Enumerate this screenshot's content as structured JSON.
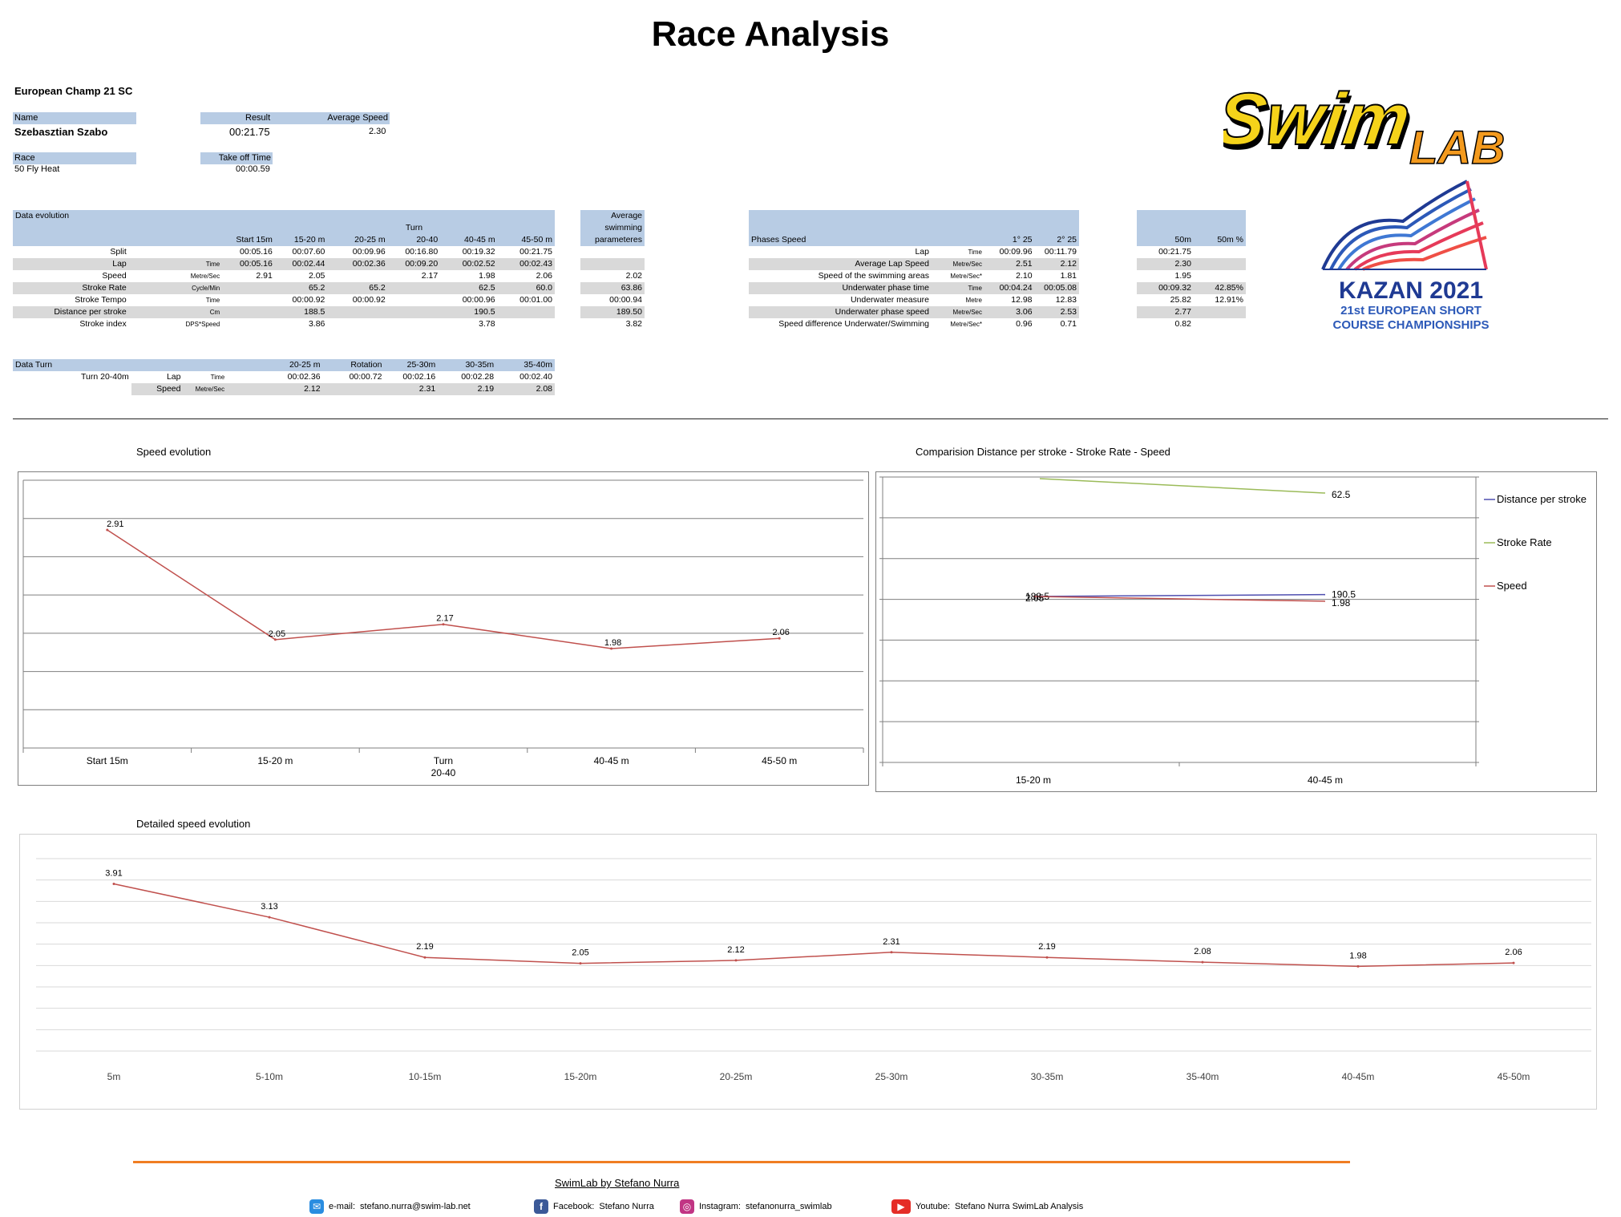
{
  "title": "Race Analysis",
  "event": "European Champ 21 SC",
  "athlete": {
    "name_label": "Name",
    "name": "Szebasztian Szabo",
    "result_label": "Result",
    "result": "00:21.75",
    "avg_speed_label": "Average Speed",
    "avg_speed": "2.30",
    "race_label": "Race",
    "race": "50 Fly Heat",
    "takeoff_label": "Take off Time",
    "takeoff": "00:00.59"
  },
  "data_evolution": {
    "title": "Data  evolution",
    "turn_top": "Turn",
    "columns": [
      "Start 15m",
      "15-20 m",
      "20-25 m",
      "20-40",
      "40-45 m",
      "45-50 m"
    ],
    "rows": [
      {
        "label": "Split",
        "unit": "",
        "values": [
          "00:05.16",
          "00:07.60",
          "00:09.96",
          "00:16.80",
          "00:19.32",
          "00:21.75"
        ]
      },
      {
        "label": "Lap",
        "unit": "Time",
        "values": [
          "00:05.16",
          "00:02.44",
          "00:02.36",
          "00:09.20",
          "00:02.52",
          "00:02.43"
        ]
      },
      {
        "label": "Speed",
        "unit": "Metre/Sec",
        "values": [
          "2.91",
          "2.05",
          "",
          "2.17",
          "1.98",
          "2.06"
        ]
      },
      {
        "label": "Stroke Rate",
        "unit": "Cycle/Min",
        "values": [
          "",
          "65.2",
          "65.2",
          "",
          "62.5",
          "60.0"
        ]
      },
      {
        "label": "Stroke Tempo",
        "unit": "Time",
        "values": [
          "",
          "00:00.92",
          "00:00.92",
          "",
          "00:00.96",
          "00:01.00"
        ]
      },
      {
        "label": "Distance per stroke",
        "unit": "Cm",
        "values": [
          "",
          "188.5",
          "",
          "",
          "190.5",
          ""
        ]
      },
      {
        "label": "Stroke index",
        "unit": "DPS*Speed",
        "values": [
          "",
          "3.86",
          "",
          "",
          "3.78",
          ""
        ]
      }
    ]
  },
  "avg_params": {
    "header": [
      "Average",
      "swimming",
      "parameteres"
    ],
    "values": [
      "",
      "",
      "2.02",
      "63.86",
      "00:00.94",
      "189.50",
      "3.82"
    ]
  },
  "phases": {
    "header_label": "Phases Speed",
    "col1": "1° 25",
    "col2": "2° 25",
    "rows": [
      {
        "label": "Lap",
        "unit": "Time",
        "v1": "00:09.96",
        "v2": "00:11.79"
      },
      {
        "label": "Average Lap Speed",
        "unit": "Metre/Sec",
        "v1": "2.51",
        "v2": "2.12"
      },
      {
        "label": "Speed of the swimming areas",
        "unit": "Metre/Sec*",
        "v1": "2.10",
        "v2": "1.81"
      },
      {
        "label": "Underwater phase time",
        "unit": "Time",
        "v1": "00:04.24",
        "v2": "00:05.08"
      },
      {
        "label": "Underwater measure",
        "unit": "Metre",
        "v1": "12.98",
        "v2": "12.83"
      },
      {
        "label": "Underwater phase speed",
        "unit": "Metre/Sec",
        "v1": "3.06",
        "v2": "2.53"
      },
      {
        "label": "Speed difference  Underwater/Swimming",
        "unit": "Metre/Sec*",
        "v1": "0.96",
        "v2": "0.71"
      }
    ]
  },
  "total50": {
    "col1": "50m",
    "col2": "50m %",
    "rows": [
      {
        "v1": "00:21.75",
        "v2": ""
      },
      {
        "v1": "2.30",
        "v2": ""
      },
      {
        "v1": "1.95",
        "v2": ""
      },
      {
        "v1": "00:09.32",
        "v2": "42.85%"
      },
      {
        "v1": "25.82",
        "v2": "12.91%"
      },
      {
        "v1": "2.77",
        "v2": ""
      },
      {
        "v1": "0.82",
        "v2": ""
      }
    ]
  },
  "data_turn": {
    "title": "Data Turn",
    "turn_label": "Turn  20-40m",
    "columns": [
      "20-25 m",
      "Rotation",
      "25-30m",
      "30-35m",
      "35-40m"
    ],
    "rows": [
      {
        "label": "Lap",
        "unit": "Time",
        "values": [
          "00:02.36",
          "00:00.72",
          "00:02.16",
          "00:02.28",
          "00:02.40"
        ]
      },
      {
        "label": "Speed",
        "unit": "Metre/Sec",
        "values": [
          "2.12",
          "",
          "2.31",
          "2.19",
          "2.08"
        ]
      }
    ]
  },
  "logos": {
    "swimlab_word1": "Swim",
    "swimlab_word2": "LAB",
    "kazan_main": "KAZAN 2021",
    "kazan_line1": "21st EUROPEAN SHORT",
    "kazan_line2": "COURSE CHAMPIONSHIPS"
  },
  "colors": {
    "header_blue": "#b8cce4",
    "row_gray": "#d9d9d9",
    "speed_red": "#c0504d",
    "dps_blue": "#4f4fb0",
    "rate_green": "#9bbb59",
    "footer_orange": "#f07d22"
  },
  "chart_data": [
    {
      "type": "line",
      "title": "Speed evolution",
      "categories": [
        "Start 15m",
        "15-20 m",
        "Turn\n20-40",
        "40-45 m",
        "45-50 m"
      ],
      "series": [
        {
          "values": [
            2.91,
            2.05,
            2.17,
            1.98,
            2.06
          ]
        }
      ],
      "ylim": [
        1.2,
        3.3
      ],
      "grid": true
    },
    {
      "type": "line",
      "title": "Comparision  Distance per stroke - Stroke Rate - Speed",
      "categories": [
        "15-20 m",
        "40-45 m"
      ],
      "series": [
        {
          "name": "Distance per stroke",
          "values": [
            188.5,
            190.5
          ]
        },
        {
          "name": "Stroke Rate",
          "values": [
            65.2,
            62.5
          ]
        },
        {
          "name": "Speed",
          "values": [
            2.05,
            1.98
          ]
        }
      ],
      "legend": "right",
      "grid": true
    },
    {
      "type": "line",
      "title": "Detailed speed evolution",
      "categories": [
        "5m",
        "5-10m",
        "10-15m",
        "15-20m",
        "20-25m",
        "25-30m",
        "30-35m",
        "35-40m",
        "40-45m",
        "45-50m"
      ],
      "series": [
        {
          "values": [
            3.91,
            3.13,
            2.19,
            2.05,
            2.12,
            2.31,
            2.19,
            2.08,
            1.98,
            2.06
          ]
        }
      ],
      "ylim": [
        0,
        4.5
      ],
      "grid": true
    }
  ],
  "footer": {
    "credit": "SwimLab by Stefano Nurra",
    "email_label": "e-mail:",
    "email": "stefano.nurra@swim-lab.net",
    "facebook_label": "Facebook:",
    "facebook": "Stefano Nurra",
    "instagram_label": "Instagram:",
    "instagram": "stefanonurra_swimlab",
    "youtube_label": "Youtube:",
    "youtube": "Stefano Nurra SwimLab Analysis"
  }
}
